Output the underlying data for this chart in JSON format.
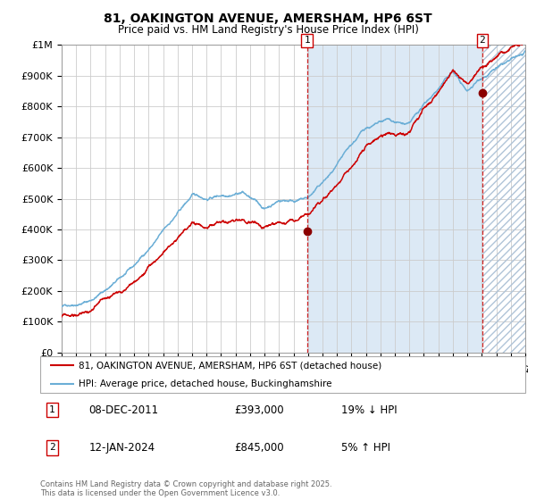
{
  "title": "81, OAKINGTON AVENUE, AMERSHAM, HP6 6ST",
  "subtitle": "Price paid vs. HM Land Registry's House Price Index (HPI)",
  "hpi_color": "#6baed6",
  "price_color": "#cc0000",
  "plot_bg": "#ffffff",
  "fill_color": "#dce9f5",
  "hatch_color": "#c8d4e0",
  "ylim": [
    0,
    1000000
  ],
  "yticks": [
    0,
    100000,
    200000,
    300000,
    400000,
    500000,
    600000,
    700000,
    800000,
    900000,
    1000000
  ],
  "ytick_labels": [
    "£0",
    "£100K",
    "£200K",
    "£300K",
    "£400K",
    "£500K",
    "£600K",
    "£700K",
    "£800K",
    "£900K",
    "£1M"
  ],
  "year_start": 1995,
  "year_end": 2027,
  "sale1_date": 2011.93,
  "sale1_price": 393000,
  "sale1_label": "1",
  "sale2_date": 2024.04,
  "sale2_price": 845000,
  "sale2_label": "2",
  "legend_line1": "81, OAKINGTON AVENUE, AMERSHAM, HP6 6ST (detached house)",
  "legend_line2": "HPI: Average price, detached house, Buckinghamshire",
  "table_rows": [
    {
      "num": "1",
      "date": "08-DEC-2011",
      "price": "£393,000",
      "hpi": "19% ↓ HPI"
    },
    {
      "num": "2",
      "date": "12-JAN-2024",
      "price": "£845,000",
      "hpi": "5% ↑ HPI"
    }
  ],
  "footer": "Contains HM Land Registry data © Crown copyright and database right 2025.\nThis data is licensed under the Open Government Licence v3.0."
}
